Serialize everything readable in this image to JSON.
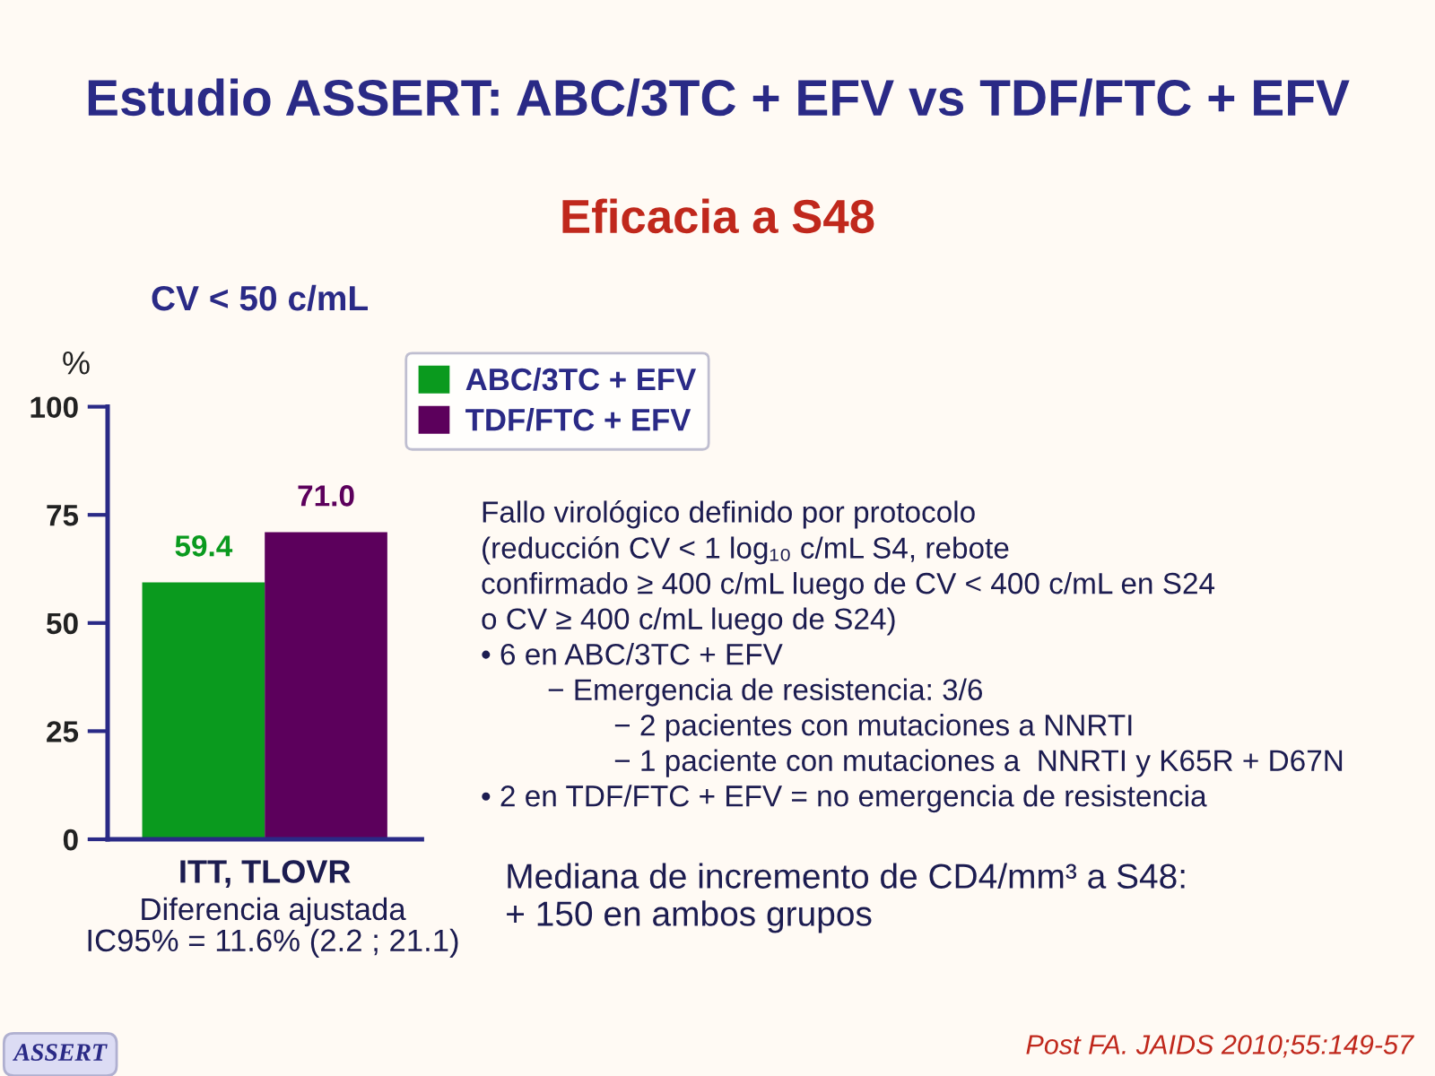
{
  "chart_data": {
    "type": "bar",
    "title": "Estudio ASSERT: ABC/3TC + EFV vs TDF/FTC + EFV",
    "subtitle": "Eficacia a S48",
    "ylabel": "%",
    "categories": [
      "ITT, TLOVR"
    ],
    "series": [
      {
        "name": "ABC/3TC + EFV",
        "color": "#0a9a1e",
        "values": [
          59.4
        ]
      },
      {
        "name": "TDF/FTC + EFV",
        "color": "#5c005c",
        "values": [
          71.0
        ]
      }
    ],
    "value_labels": [
      [
        "59.4"
      ],
      [
        "71.0"
      ]
    ],
    "ylim": [
      0,
      100
    ],
    "yticks": [
      0,
      25,
      50,
      75,
      100
    ],
    "grid": false,
    "legend": "top right",
    "annotations": [
      "CV < 50 c/mL",
      "Diferencia ajustada\nIC95% = 11.6% (2.2 ; 21.1)",
      "Fallo virológico definido por protocolo\n(reducción CV < 1 log₁₀ c/mL S4, rebote\nconfirmado ≥ 400 c/mL luego de CV < 400 c/mL en S24\no CV ≥ 400 c/mL luego de S24)\n• 6 en ABC/3TC + EFV\n        − Emergencia de resistencia: 3/6\n                − 2 pacientes con mutaciones a NNRTI\n                − 1 paciente con mutaciones a  NNRTI y K65R + D67N\n• 2 en TDF/FTC + EFV = no emergencia de resistencia",
      "Mediana de incremento de CD4/mm³ a S48:\n+ 150 en ambos grupos",
      "Post FA. JAIDS 2010;55:149-57",
      "ASSERT"
    ]
  }
}
